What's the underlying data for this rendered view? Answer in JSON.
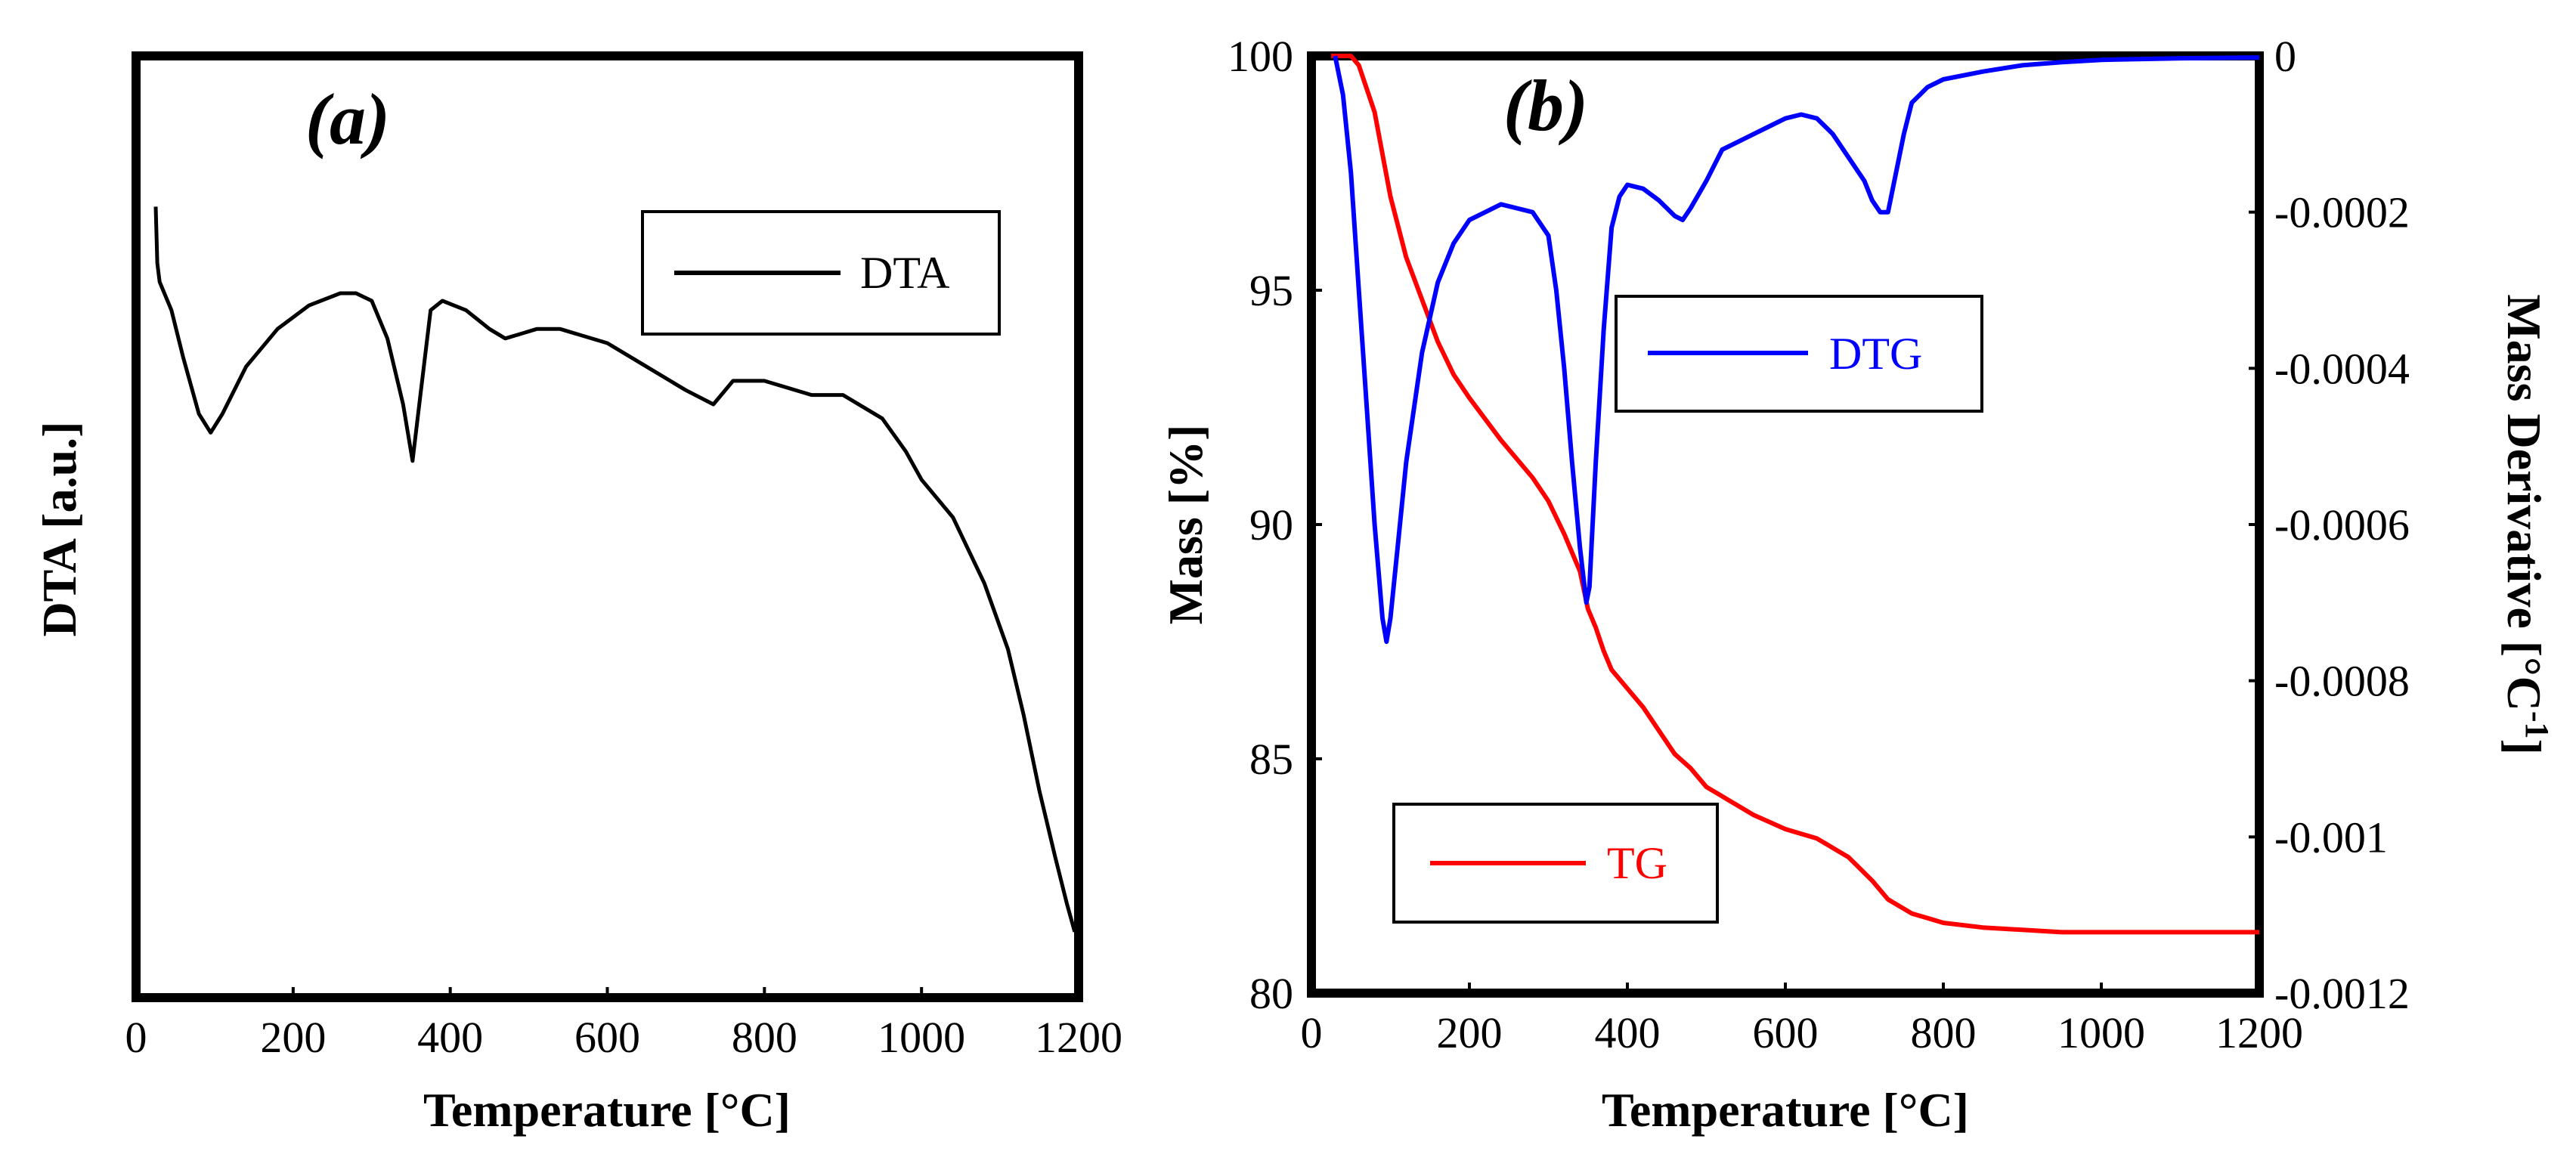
{
  "colors": {
    "axis": "#000000",
    "dta": "#000000",
    "tg": "#ff0000",
    "dtg": "#0000ff"
  },
  "chart_data": [
    {
      "id": "a",
      "type": "line",
      "panel_label": "a",
      "xlabel": "Temperature [°C]",
      "ylabel": "DTA [a.u.]",
      "xlim": [
        0,
        1200
      ],
      "ylim": [
        0,
        100
      ],
      "xticks": [
        0,
        200,
        400,
        600,
        800,
        1000,
        1200
      ],
      "xtick_labels": [
        "0",
        "200",
        "400",
        "600",
        "800",
        "1000",
        "1200"
      ],
      "yticks": [],
      "legend": [
        {
          "label": "DTA",
          "series": "dta",
          "position": "top-right"
        }
      ],
      "series": [
        {
          "name": "dta",
          "axis": "left",
          "x": [
            25,
            27,
            30,
            45,
            60,
            80,
            95,
            110,
            140,
            180,
            220,
            260,
            280,
            300,
            320,
            340,
            352,
            362,
            375,
            390,
            420,
            450,
            470,
            490,
            510,
            540,
            600,
            650,
            700,
            735,
            760,
            800,
            860,
            900,
            950,
            980,
            1000,
            1040,
            1080,
            1110,
            1130,
            1150,
            1170,
            1185,
            1195
          ],
          "y": [
            84,
            78,
            76,
            73,
            68,
            62,
            60,
            62,
            67,
            71,
            73.5,
            74.8,
            74.8,
            74,
            70,
            63,
            57,
            64,
            73,
            74,
            73,
            71,
            70,
            70.5,
            71,
            71,
            69.5,
            67,
            64.5,
            63,
            65.5,
            65.5,
            64,
            64,
            61.5,
            58,
            55,
            51,
            44,
            37,
            30,
            22,
            15,
            10,
            7
          ]
        }
      ]
    },
    {
      "id": "b",
      "type": "line",
      "panel_label": "b",
      "xlabel": "Temperature [°C]",
      "ylabel": "Mass [%]",
      "ylabel_right": "Mass Derivative [°C",
      "ylabel_right_sup": "-1",
      "ylabel_right_end": "]",
      "xlim": [
        0,
        1200
      ],
      "ylim": [
        80,
        100
      ],
      "ylim_right": [
        -0.0012,
        0
      ],
      "xticks": [
        0,
        200,
        400,
        600,
        800,
        1000,
        1200
      ],
      "xtick_labels": [
        "0",
        "200",
        "400",
        "600",
        "800",
        "1000",
        "1200"
      ],
      "yticks": [
        80,
        85,
        90,
        95,
        100
      ],
      "ytick_labels": [
        "80",
        "85",
        "90",
        "95",
        "100"
      ],
      "yticks_right": [
        -0.0012,
        -0.001,
        -0.0008,
        -0.0006,
        -0.0004,
        -0.0002,
        0
      ],
      "ytick_labels_right": [
        "-0.0012",
        "-0.001",
        "-0.0008",
        "-0.0006",
        "-0.0004",
        "-0.0002",
        "0"
      ],
      "legend": [
        {
          "label": "DTG",
          "series": "dtg",
          "position": "center"
        },
        {
          "label": "TG",
          "series": "tg",
          "position": "bottom-left"
        }
      ],
      "series": [
        {
          "name": "tg",
          "axis": "left",
          "x": [
            25,
            40,
            50,
            60,
            80,
            100,
            120,
            140,
            160,
            180,
            200,
            240,
            280,
            300,
            320,
            340,
            350,
            360,
            370,
            380,
            400,
            420,
            440,
            460,
            480,
            500,
            520,
            560,
            600,
            640,
            680,
            710,
            730,
            760,
            780,
            800,
            850,
            900,
            950,
            1000,
            1100,
            1200
          ],
          "y": [
            100,
            100,
            100,
            99.8,
            98.8,
            97.0,
            95.7,
            94.8,
            93.9,
            93.2,
            92.7,
            91.8,
            91.0,
            90.5,
            89.8,
            89.0,
            88.2,
            87.8,
            87.3,
            86.9,
            86.5,
            86.1,
            85.6,
            85.1,
            84.8,
            84.4,
            84.2,
            83.8,
            83.5,
            83.3,
            82.9,
            82.4,
            82.0,
            81.7,
            81.6,
            81.5,
            81.4,
            81.35,
            81.3,
            81.3,
            81.3,
            81.3
          ]
        },
        {
          "name": "dtg",
          "axis": "right",
          "x": [
            30,
            40,
            50,
            60,
            70,
            80,
            90,
            95,
            100,
            110,
            120,
            140,
            160,
            180,
            200,
            220,
            240,
            260,
            280,
            300,
            310,
            320,
            330,
            340,
            348,
            352,
            360,
            370,
            380,
            390,
            400,
            420,
            440,
            460,
            470,
            480,
            500,
            520,
            540,
            560,
            580,
            600,
            620,
            640,
            660,
            680,
            700,
            710,
            720,
            730,
            740,
            750,
            760,
            780,
            800,
            850,
            900,
            950,
            1000,
            1100,
            1200
          ],
          "y": [
            0,
            -5e-05,
            -0.00015,
            -0.0003,
            -0.00045,
            -0.0006,
            -0.00072,
            -0.00075,
            -0.00072,
            -0.00062,
            -0.00052,
            -0.00038,
            -0.00029,
            -0.00024,
            -0.00021,
            -0.0002,
            -0.00019,
            -0.000195,
            -0.0002,
            -0.00023,
            -0.0003,
            -0.0004,
            -0.00052,
            -0.00063,
            -0.0007,
            -0.00068,
            -0.00052,
            -0.00035,
            -0.00022,
            -0.00018,
            -0.000165,
            -0.00017,
            -0.000185,
            -0.000205,
            -0.00021,
            -0.000195,
            -0.00016,
            -0.00012,
            -0.00011,
            -0.0001,
            -9e-05,
            -8e-05,
            -7.5e-05,
            -8e-05,
            -0.0001,
            -0.00013,
            -0.00016,
            -0.000185,
            -0.0002,
            -0.0002,
            -0.00015,
            -0.0001,
            -6e-05,
            -4e-05,
            -3e-05,
            -2e-05,
            -1.2e-05,
            -8e-06,
            -5e-06,
            -3e-06,
            -2e-06
          ]
        }
      ]
    }
  ]
}
